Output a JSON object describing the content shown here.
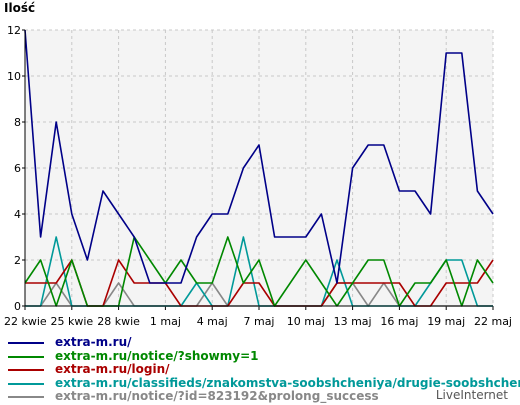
{
  "chart_data": {
    "type": "line",
    "ylabel": "Ilość",
    "ylim": [
      0,
      12
    ],
    "yticks": [
      0,
      2,
      4,
      6,
      8,
      10,
      12
    ],
    "x_tick_labels": [
      "22 kwie",
      "25 kwie",
      "28 kwie",
      "1 maj",
      "4 maj",
      "7 maj",
      "10 maj",
      "13 maj",
      "16 maj",
      "19 maj",
      "22 maj"
    ],
    "grid": true,
    "series": [
      {
        "name": "extra-m.ru/",
        "color": "#000088",
        "values": [
          12,
          3,
          8,
          4,
          2,
          5,
          4,
          3,
          1,
          1,
          1,
          3,
          4,
          4,
          6,
          7,
          3,
          3,
          3,
          4,
          1,
          6,
          7,
          7,
          5,
          5,
          4,
          11,
          11,
          5,
          4
        ]
      },
      {
        "name": "extra-m.ru/notice/?showmy=1",
        "color": "#008800",
        "values": [
          1,
          2,
          0,
          2,
          0,
          0,
          0,
          3,
          2,
          1,
          2,
          1,
          1,
          3,
          1,
          2,
          0,
          1,
          2,
          1,
          0,
          1,
          2,
          2,
          0,
          1,
          1,
          2,
          0,
          2,
          1
        ]
      },
      {
        "name": "extra-m.ru/login/",
        "color": "#aa0000",
        "values": [
          1,
          1,
          1,
          2,
          0,
          0,
          2,
          1,
          1,
          1,
          0,
          0,
          0,
          0,
          1,
          1,
          0,
          0,
          0,
          0,
          1,
          1,
          1,
          1,
          1,
          0,
          0,
          1,
          1,
          1,
          2
        ]
      },
      {
        "name": "extra-m.ru/classifieds/znakomstva-soobshcheniya/drugie-soobshcheniya/",
        "color": "#009999",
        "values": [
          0,
          0,
          3,
          0,
          0,
          0,
          0,
          0,
          0,
          0,
          0,
          1,
          0,
          0,
          3,
          0,
          0,
          0,
          0,
          0,
          2,
          0,
          0,
          0,
          0,
          0,
          1,
          2,
          2,
          0,
          0
        ]
      },
      {
        "name": "extra-m.ru/notice/?id=823192&prolong_success",
        "color": "#888888",
        "values": [
          0,
          0,
          1,
          0,
          0,
          0,
          1,
          0,
          0,
          0,
          0,
          0,
          1,
          0,
          0,
          0,
          0,
          0,
          0,
          0,
          1,
          1,
          0,
          1,
          0,
          0,
          0,
          0,
          0,
          0,
          0
        ]
      }
    ]
  },
  "watermark": "LiveInternet"
}
